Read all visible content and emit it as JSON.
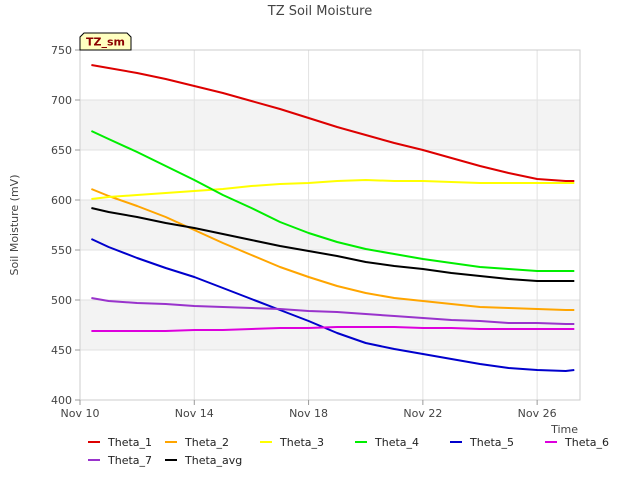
{
  "chart_data": {
    "type": "line",
    "title": "TZ Soil Moisture",
    "xlabel": "Time",
    "ylabel": "Soil Moisture (mV)",
    "badge": "TZ_sm",
    "ylim": [
      400,
      750
    ],
    "yticks": [
      400,
      450,
      500,
      550,
      600,
      650,
      700,
      750
    ],
    "xlim": [
      0,
      17.5
    ],
    "xticks": [
      {
        "value": 0,
        "label": "Nov 10"
      },
      {
        "value": 4,
        "label": "Nov 14"
      },
      {
        "value": 8,
        "label": "Nov 18"
      },
      {
        "value": 12,
        "label": "Nov 22"
      },
      {
        "value": 16,
        "label": "Nov 26"
      }
    ],
    "grid": true,
    "legend_position": "bottom",
    "x": [
      0.4,
      1,
      2,
      3,
      4,
      5,
      6,
      7,
      8,
      9,
      10,
      11,
      12,
      13,
      14,
      15,
      16,
      17,
      17.3
    ],
    "series": [
      {
        "name": "Theta_1",
        "color": "#dd0000",
        "values": [
          735,
          732,
          727,
          721,
          714,
          707,
          699,
          691,
          682,
          673,
          665,
          657,
          650,
          642,
          634,
          627,
          621,
          619,
          619
        ]
      },
      {
        "name": "Theta_2",
        "color": "#ffa500",
        "values": [
          611,
          604,
          594,
          583,
          570,
          557,
          545,
          533,
          523,
          514,
          507,
          502,
          499,
          496,
          493,
          492,
          491,
          490,
          490
        ]
      },
      {
        "name": "Theta_3",
        "color": "#ffff00",
        "values": [
          601,
          603,
          605,
          607,
          609,
          611,
          614,
          616,
          617,
          619,
          620,
          619,
          619,
          618,
          617,
          617,
          617,
          617,
          617
        ]
      },
      {
        "name": "Theta_4",
        "color": "#00ee00",
        "values": [
          669,
          661,
          648,
          634,
          620,
          605,
          592,
          578,
          567,
          558,
          551,
          546,
          541,
          537,
          533,
          531,
          529,
          529,
          529
        ]
      },
      {
        "name": "Theta_5",
        "color": "#0000cc",
        "values": [
          561,
          553,
          542,
          532,
          523,
          512,
          501,
          490,
          479,
          467,
          457,
          451,
          446,
          441,
          436,
          432,
          430,
          429,
          430
        ]
      },
      {
        "name": "Theta_6",
        "color": "#dd00dd",
        "values": [
          469,
          469,
          469,
          469,
          470,
          470,
          471,
          472,
          472,
          473,
          473,
          473,
          472,
          472,
          471,
          471,
          471,
          471,
          471
        ]
      },
      {
        "name": "Theta_7",
        "color": "#9933cc",
        "values": [
          502,
          499,
          497,
          496,
          494,
          493,
          492,
          491,
          489,
          488,
          486,
          484,
          482,
          480,
          479,
          477,
          477,
          476,
          476
        ]
      },
      {
        "name": "Theta_avg",
        "color": "#000000",
        "values": [
          592,
          588,
          583,
          577,
          572,
          566,
          560,
          554,
          549,
          544,
          538,
          534,
          531,
          527,
          524,
          521,
          519,
          519,
          519
        ]
      }
    ]
  }
}
